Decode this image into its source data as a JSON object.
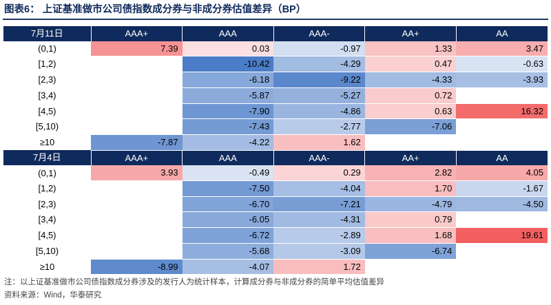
{
  "title": "图表6：  上证基准做市公司债指数成分券与非成分券估值差异（BP）",
  "note": "注：以上证基准做市公司债指数成分券涉及的发行人为统计样本，计算成分券与非成分券的简单平均估值差异",
  "source": "资料来源：Wind，华泰研究",
  "colors": {
    "header_bg": "#0f2a5c",
    "neg_max": "#4a7cc7",
    "pos_max": "#f26060",
    "title": "#0f2a5c"
  },
  "ratings": [
    "AAA+",
    "AAA",
    "AAA-",
    "AA+",
    "AA"
  ],
  "panels": [
    {
      "date": "7月11日",
      "rows": [
        {
          "term": "(0,1)",
          "values": [
            "7.39",
            "0.03",
            "-0.97",
            "1.33",
            "3.47"
          ]
        },
        {
          "term": "[1,2)",
          "values": [
            "",
            "-10.42",
            "-4.29",
            "0.47",
            "-0.63"
          ]
        },
        {
          "term": "[2,3)",
          "values": [
            "",
            "-6.18",
            "-9.22",
            "-4.33",
            "-3.93"
          ]
        },
        {
          "term": "[3,4)",
          "values": [
            "",
            "-5.87",
            "-5.27",
            "0.72",
            ""
          ]
        },
        {
          "term": "[4,5)",
          "values": [
            "",
            "-7.90",
            "-4.86",
            "0.63",
            "16.32"
          ]
        },
        {
          "term": "[5,10)",
          "values": [
            "",
            "-7.43",
            "-2.77",
            "-7.06",
            ""
          ]
        },
        {
          "term": "≥10",
          "values": [
            "-7.87",
            "-4.22",
            "1.62",
            "",
            ""
          ]
        }
      ]
    },
    {
      "date": "7月4日",
      "rows": [
        {
          "term": "(0,1)",
          "values": [
            "3.93",
            "-0.49",
            "0.29",
            "2.82",
            "4.05"
          ]
        },
        {
          "term": "[1,2)",
          "values": [
            "",
            "-7.50",
            "-4.04",
            "1.70",
            "-1.67"
          ]
        },
        {
          "term": "[2,3)",
          "values": [
            "",
            "-6.70",
            "-7.21",
            "-4.79",
            "-4.50"
          ]
        },
        {
          "term": "[3,4)",
          "values": [
            "",
            "-6.05",
            "-4.31",
            "0.79",
            ""
          ]
        },
        {
          "term": "[4,5)",
          "values": [
            "",
            "-6.72",
            "-2.89",
            "1.68",
            "19.61"
          ]
        },
        {
          "term": "[5,10)",
          "values": [
            "",
            "-5.68",
            "-3.09",
            "-6.74",
            ""
          ]
        },
        {
          "term": "≥10",
          "values": [
            "-8.99",
            "-4.07",
            "1.72",
            "",
            ""
          ]
        }
      ]
    }
  ]
}
